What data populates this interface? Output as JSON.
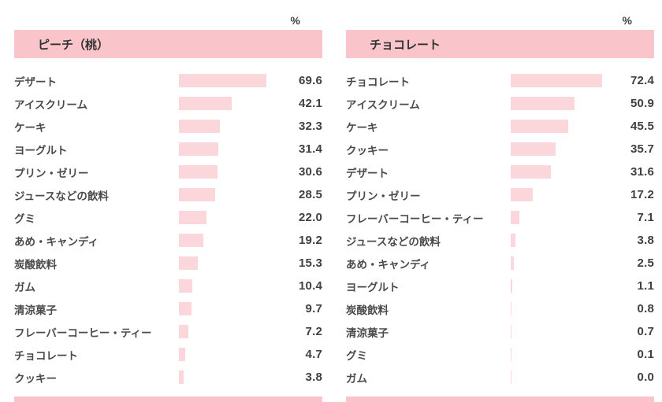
{
  "colors": {
    "header_bg": "#f9c4ca",
    "bar_fill": "#fbd6da",
    "text": "#404040"
  },
  "chart_data": [
    {
      "type": "bar",
      "orientation": "horizontal",
      "title": "ピーチ（桃）",
      "unit": "%",
      "xlim": [
        0,
        80
      ],
      "grid": false,
      "categories": [
        "デザート",
        "アイスクリーム",
        "ケーキ",
        "ヨーグルト",
        "プリン・ゼリー",
        "ジュースなどの飲料",
        "グミ",
        "あめ・キャンディ",
        "炭酸飲料",
        "ガム",
        "清涼菓子",
        "フレーバーコーヒー・ティー",
        "チョコレート",
        "クッキー"
      ],
      "values": [
        69.6,
        42.1,
        32.3,
        31.4,
        30.6,
        28.5,
        22.0,
        19.2,
        15.3,
        10.4,
        9.7,
        7.2,
        4.7,
        3.8
      ]
    },
    {
      "type": "bar",
      "orientation": "horizontal",
      "title": "チョコレート",
      "unit": "%",
      "xlim": [
        0,
        80
      ],
      "grid": false,
      "categories": [
        "チョコレート",
        "アイスクリーム",
        "ケーキ",
        "クッキー",
        "デザート",
        "プリン・ゼリー",
        "フレーバーコーヒー・ティー",
        "ジュースなどの飲料",
        "あめ・キャンディ",
        "ヨーグルト",
        "炭酸飲料",
        "清涼菓子",
        "グミ",
        "ガム"
      ],
      "values": [
        72.4,
        50.9,
        45.5,
        35.7,
        31.6,
        17.2,
        7.1,
        3.8,
        2.5,
        1.1,
        0.8,
        0.7,
        0.1,
        0.0
      ]
    }
  ]
}
